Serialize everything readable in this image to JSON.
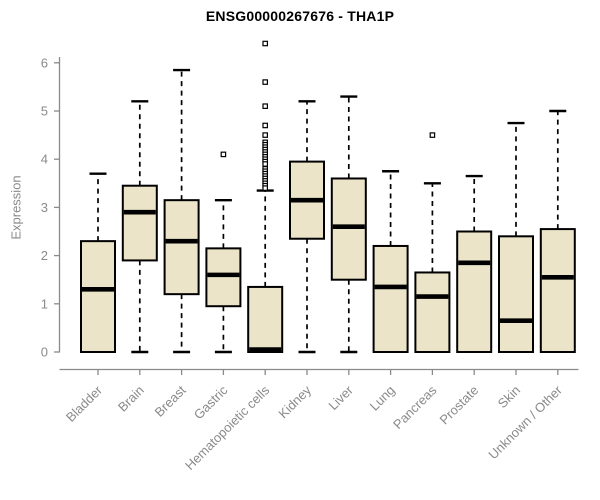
{
  "chart_data": {
    "type": "boxplot",
    "title": "ENSG00000267676 - THA1P",
    "ylabel": "Expression",
    "xlabel": "",
    "ylim": [
      0,
      6
    ],
    "yticks": [
      0,
      1,
      2,
      3,
      4,
      5,
      6
    ],
    "grid": false,
    "legend": "none",
    "categories": [
      "Bladder",
      "Brain",
      "Breast",
      "Gastric",
      "Hematopoietic cells",
      "Kidney",
      "Liver",
      "Lung",
      "Pancreas",
      "Prostate",
      "Skin",
      "Unknown / Other"
    ],
    "boxes": [
      {
        "category": "Bladder",
        "whisker_low": 0,
        "q1": 0,
        "median": 1.3,
        "q3": 2.3,
        "whisker_high": 3.7,
        "outliers": []
      },
      {
        "category": "Brain",
        "whisker_low": 0,
        "q1": 1.9,
        "median": 2.9,
        "q3": 3.45,
        "whisker_high": 5.2,
        "outliers": []
      },
      {
        "category": "Breast",
        "whisker_low": 0,
        "q1": 1.2,
        "median": 2.3,
        "q3": 3.15,
        "whisker_high": 5.85,
        "outliers": []
      },
      {
        "category": "Gastric",
        "whisker_low": 0,
        "q1": 0.95,
        "median": 1.6,
        "q3": 2.15,
        "whisker_high": 3.15,
        "outliers": [
          4.1
        ]
      },
      {
        "category": "Hematopoietic cells",
        "whisker_low": 0,
        "q1": 0,
        "median": 0.05,
        "q3": 1.35,
        "whisker_high": 3.35,
        "outliers": [
          6.4,
          5.6,
          5.1,
          4.7,
          4.5,
          4.35,
          4.3,
          4.25,
          4.2,
          4.15,
          4.1,
          4.05,
          4.0,
          3.95,
          3.9,
          3.8,
          3.75,
          3.7,
          3.65,
          3.6,
          3.55,
          3.5,
          3.45,
          3.4
        ]
      },
      {
        "category": "Kidney",
        "whisker_low": 0,
        "q1": 2.35,
        "median": 3.15,
        "q3": 3.95,
        "whisker_high": 5.2,
        "outliers": []
      },
      {
        "category": "Liver",
        "whisker_low": 0,
        "q1": 1.5,
        "median": 2.6,
        "q3": 3.6,
        "whisker_high": 5.3,
        "outliers": []
      },
      {
        "category": "Lung",
        "whisker_low": 0,
        "q1": 0,
        "median": 1.35,
        "q3": 2.2,
        "whisker_high": 3.75,
        "outliers": []
      },
      {
        "category": "Pancreas",
        "whisker_low": 0,
        "q1": 0,
        "median": 1.15,
        "q3": 1.65,
        "whisker_high": 3.5,
        "outliers": [
          4.5
        ]
      },
      {
        "category": "Prostate",
        "whisker_low": 0,
        "q1": 0,
        "median": 1.85,
        "q3": 2.5,
        "whisker_high": 3.65,
        "outliers": []
      },
      {
        "category": "Skin",
        "whisker_low": 0,
        "q1": 0,
        "median": 0.65,
        "q3": 2.4,
        "whisker_high": 4.75,
        "outliers": []
      },
      {
        "category": "Unknown / Other",
        "whisker_low": 0,
        "q1": 0,
        "median": 1.55,
        "q3": 2.55,
        "whisker_high": 5.0,
        "outliers": []
      }
    ],
    "colors": {
      "box_fill": "#ece4c8",
      "box_border": "#000000",
      "median": "#000000",
      "whisker": "#000000",
      "outlier_stroke": "#000000",
      "outlier_fill": "#ffffff",
      "axis": "#8a8a8a",
      "tick_label": "#8a8a8a",
      "category_label": "#8a8a8a",
      "title": "#000000",
      "background": "#ffffff"
    }
  }
}
